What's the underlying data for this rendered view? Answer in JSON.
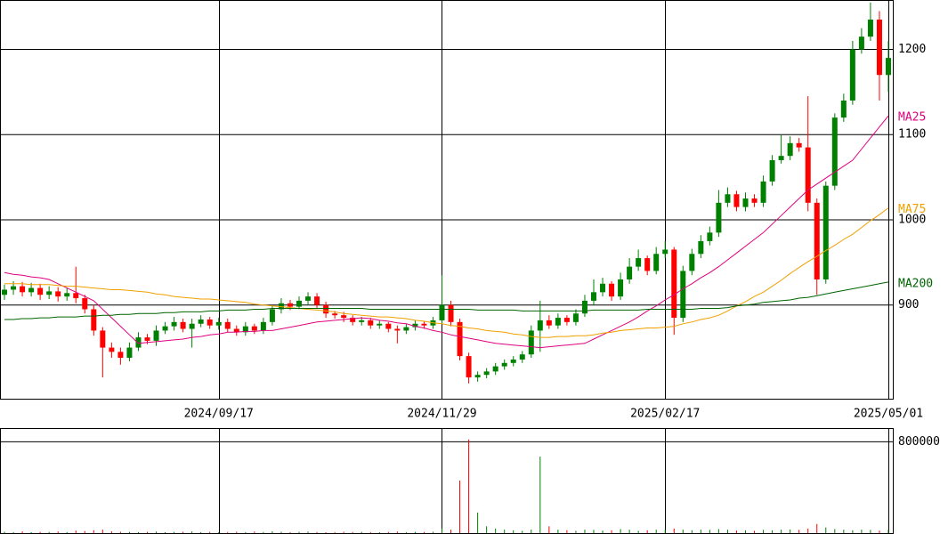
{
  "chart_data": {
    "type": "candlestick",
    "categories": [
      null,
      null,
      null,
      null,
      null,
      null,
      null,
      null,
      null,
      null,
      null,
      null,
      null,
      null,
      null,
      null,
      null,
      null,
      null,
      null,
      null,
      null,
      null,
      null,
      "2024/09/17",
      null,
      null,
      null,
      null,
      null,
      null,
      null,
      null,
      null,
      null,
      null,
      null,
      null,
      null,
      null,
      null,
      null,
      null,
      null,
      null,
      null,
      null,
      null,
      null,
      "2024/11/29",
      null,
      null,
      null,
      null,
      null,
      null,
      null,
      null,
      null,
      null,
      null,
      null,
      null,
      null,
      null,
      null,
      null,
      null,
      null,
      null,
      null,
      null,
      null,
      null,
      "2025/02/17",
      null,
      null,
      null,
      null,
      null,
      null,
      null,
      null,
      null,
      null,
      null,
      null,
      null,
      null,
      null,
      null,
      null,
      null,
      null,
      null,
      null,
      null,
      null,
      null,
      "2025/05/01"
    ],
    "open": [
      912,
      918,
      922,
      915,
      920,
      912,
      916,
      910,
      914,
      908,
      895,
      870,
      850,
      845,
      838,
      850,
      862,
      858,
      870,
      875,
      880,
      872,
      878,
      883,
      876,
      880,
      872,
      868,
      875,
      870,
      880,
      895,
      902,
      898,
      905,
      910,
      900,
      890,
      888,
      885,
      880,
      882,
      876,
      878,
      872,
      870,
      874,
      878,
      876,
      882,
      900,
      880,
      840,
      815,
      818,
      822,
      828,
      832,
      836,
      842,
      870,
      882,
      876,
      885,
      880,
      890,
      905,
      915,
      925,
      910,
      930,
      945,
      955,
      940,
      960,
      965,
      885,
      940,
      960,
      975,
      985,
      1020,
      1030,
      1015,
      1025,
      1020,
      1045,
      1070,
      1075,
      1090,
      1085,
      1020,
      930,
      1040,
      1120,
      1140,
      1200,
      1215,
      1235,
      1170
    ],
    "high": [
      924,
      928,
      927,
      926,
      925,
      922,
      921,
      920,
      945,
      912,
      900,
      874,
      856,
      850,
      856,
      868,
      866,
      876,
      880,
      886,
      884,
      884,
      888,
      886,
      885,
      884,
      876,
      880,
      878,
      885,
      900,
      908,
      906,
      910,
      915,
      914,
      904,
      893,
      892,
      888,
      886,
      885,
      882,
      880,
      876,
      878,
      882,
      881,
      886,
      935,
      905,
      884,
      844,
      822,
      826,
      832,
      836,
      840,
      846,
      876,
      905,
      888,
      890,
      888,
      895,
      912,
      930,
      932,
      928,
      938,
      955,
      965,
      958,
      968,
      975,
      968,
      946,
      966,
      982,
      992,
      1035,
      1038,
      1034,
      1032,
      1030,
      1052,
      1076,
      1100,
      1098,
      1096,
      1145,
      1025,
      1045,
      1125,
      1148,
      1210,
      1225,
      1255,
      1245,
      1210
    ],
    "low": [
      906,
      912,
      910,
      910,
      906,
      907,
      904,
      905,
      902,
      890,
      864,
      815,
      838,
      830,
      834,
      846,
      854,
      852,
      866,
      870,
      868,
      850,
      874,
      872,
      871,
      868,
      864,
      864,
      866,
      866,
      876,
      890,
      894,
      895,
      900,
      896,
      885,
      884,
      880,
      876,
      876,
      872,
      872,
      868,
      855,
      866,
      870,
      872,
      872,
      878,
      875,
      835,
      808,
      810,
      814,
      818,
      824,
      828,
      832,
      838,
      845,
      872,
      872,
      876,
      876,
      886,
      900,
      910,
      905,
      906,
      925,
      940,
      935,
      936,
      955,
      865,
      880,
      935,
      955,
      970,
      980,
      1015,
      1010,
      1010,
      1015,
      1015,
      1040,
      1066,
      1070,
      1080,
      1010,
      912,
      925,
      1035,
      1115,
      1135,
      1195,
      1210,
      1140,
      1150
    ],
    "close": [
      918,
      922,
      915,
      920,
      912,
      916,
      910,
      914,
      908,
      895,
      870,
      850,
      845,
      838,
      850,
      862,
      858,
      870,
      875,
      880,
      872,
      878,
      883,
      876,
      880,
      872,
      868,
      875,
      870,
      880,
      895,
      902,
      898,
      905,
      910,
      900,
      890,
      888,
      885,
      880,
      882,
      876,
      878,
      872,
      870,
      874,
      878,
      876,
      882,
      900,
      880,
      840,
      815,
      818,
      822,
      828,
      832,
      836,
      842,
      870,
      882,
      876,
      885,
      880,
      890,
      905,
      915,
      925,
      910,
      930,
      945,
      955,
      940,
      960,
      965,
      885,
      940,
      960,
      975,
      985,
      1020,
      1030,
      1015,
      1025,
      1020,
      1045,
      1070,
      1075,
      1090,
      1085,
      1020,
      930,
      1040,
      1120,
      1140,
      1200,
      1215,
      1235,
      1170,
      1190
    ],
    "volume": [
      12000,
      9000,
      15000,
      8000,
      11000,
      10000,
      14000,
      9000,
      22000,
      18000,
      25000,
      30000,
      16000,
      12000,
      10000,
      9000,
      11000,
      13000,
      8000,
      10000,
      12000,
      15000,
      9000,
      11000,
      8000,
      10000,
      12000,
      9000,
      14000,
      10000,
      16000,
      12000,
      9000,
      11000,
      13000,
      10000,
      8000,
      9000,
      12000,
      10000,
      11000,
      9000,
      8000,
      10000,
      14000,
      9000,
      11000,
      10000,
      12000,
      40000,
      30000,
      460000,
      820000,
      180000,
      60000,
      40000,
      30000,
      25000,
      20000,
      30000,
      670000,
      60000,
      30000,
      25000,
      20000,
      30000,
      28000,
      22000,
      25000,
      35000,
      30000,
      20000,
      25000,
      30000,
      28000,
      40000,
      30000,
      25000,
      30000,
      28000,
      35000,
      30000,
      22000,
      25000,
      20000,
      28000,
      25000,
      30000,
      32000,
      28000,
      40000,
      80000,
      50000,
      35000,
      30000,
      25000,
      30000,
      28000,
      22000,
      30000
    ],
    "up_color": "#008000",
    "down_color": "#ff0000",
    "ylim": [
      790,
      1258
    ],
    "yticks": [
      900,
      1000,
      1100,
      1200
    ],
    "volume_ylim": [
      0,
      920000
    ],
    "volume_yticks": [
      800000
    ],
    "moving_averages": [
      {
        "name": "MA25",
        "color": "#e0007f",
        "values": [
          938,
          936,
          935,
          933,
          932,
          930,
          925,
          920,
          915,
          910,
          905,
          895,
          885,
          875,
          865,
          855,
          856,
          857,
          858,
          859,
          860,
          862,
          863,
          865,
          866,
          868,
          868,
          869,
          869,
          870,
          870,
          872,
          874,
          876,
          878,
          880,
          881,
          882,
          883,
          884,
          885,
          884,
          882,
          881,
          879,
          878,
          875,
          873,
          870,
          868,
          865,
          863,
          861,
          859,
          857,
          855,
          854,
          853,
          852,
          851,
          850,
          851,
          852,
          853,
          854,
          855,
          860,
          865,
          870,
          875,
          880,
          886,
          893,
          899,
          906,
          912,
          919,
          925,
          932,
          938,
          945,
          953,
          961,
          969,
          977,
          985,
          995,
          1005,
          1015,
          1025,
          1035,
          1042,
          1049,
          1056,
          1063,
          1070,
          1083,
          1096,
          1109,
          1122
        ]
      },
      {
        "name": "MA75",
        "color": "#f0a000",
        "values": [
          925,
          925,
          925,
          924,
          924,
          924,
          923,
          922,
          922,
          921,
          920,
          919,
          918,
          918,
          917,
          916,
          915,
          913,
          912,
          910,
          909,
          908,
          907,
          907,
          906,
          905,
          904,
          903,
          901,
          900,
          899,
          898,
          897,
          896,
          895,
          894,
          893,
          892,
          890,
          889,
          888,
          887,
          886,
          886,
          885,
          884,
          882,
          881,
          879,
          878,
          876,
          875,
          873,
          872,
          870,
          869,
          868,
          866,
          865,
          863,
          862,
          862,
          863,
          863,
          864,
          864,
          865,
          867,
          868,
          870,
          871,
          872,
          873,
          873,
          874,
          875,
          878,
          880,
          883,
          885,
          888,
          893,
          899,
          904,
          910,
          915,
          922,
          929,
          937,
          944,
          951,
          957,
          964,
          970,
          977,
          983,
          991,
          999,
          1006,
          1014
        ]
      },
      {
        "name": "MA200",
        "color": "#006400",
        "values": [
          883,
          883,
          884,
          884,
          885,
          885,
          886,
          886,
          886,
          887,
          887,
          888,
          888,
          889,
          889,
          890,
          890,
          890,
          891,
          891,
          892,
          892,
          892,
          893,
          893,
          894,
          894,
          894,
          895,
          895,
          896,
          896,
          896,
          896,
          896,
          896,
          896,
          896,
          896,
          896,
          896,
          895,
          895,
          895,
          895,
          895,
          895,
          895,
          895,
          895,
          895,
          895,
          895,
          894,
          894,
          894,
          894,
          894,
          893,
          893,
          893,
          893,
          893,
          893,
          893,
          893,
          894,
          894,
          894,
          894,
          894,
          894,
          895,
          895,
          895,
          895,
          895,
          895,
          896,
          896,
          896,
          897,
          899,
          900,
          901,
          903,
          904,
          905,
          906,
          908,
          909,
          911,
          913,
          915,
          917,
          919,
          921,
          923,
          925,
          927
        ]
      }
    ]
  }
}
